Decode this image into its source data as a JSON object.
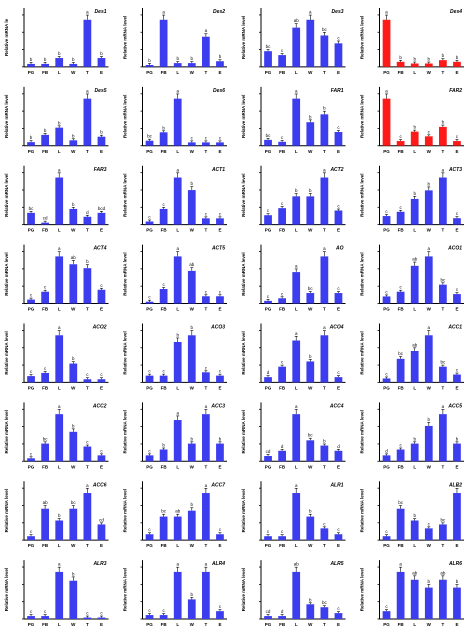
{
  "charts": [
    {
      "title": "Des1",
      "color": "#3d3df0",
      "ylabel": "Relative mRNA le",
      "values": [
        0.1,
        0.1,
        0.3,
        0.1,
        1.6,
        0.3
      ],
      "letters": [
        "b",
        "b",
        "b",
        "b",
        "a",
        "b"
      ]
    },
    {
      "title": "Des2",
      "color": "#3d3df0",
      "ylabel": "Relative mRNA level",
      "values": [
        0.05,
        1.25,
        0.1,
        0.1,
        0.8,
        0.15
      ],
      "letters": [
        "b",
        "a",
        "b",
        "b",
        "a",
        "b"
      ]
    },
    {
      "title": "Des3",
      "color": "#3d3df0",
      "ylabel": "Relative mRNA level",
      "values": [
        0.2,
        0.15,
        0.5,
        0.6,
        0.4,
        0.3
      ],
      "letters": [
        "bc",
        "c",
        "ab",
        "a",
        "bc",
        "c"
      ]
    },
    {
      "title": "Des4",
      "color": "#ff1a1a",
      "ylabel": "Relative mRNA level",
      "values": [
        1.4,
        0.15,
        0.1,
        0.1,
        0.2,
        0.15
      ],
      "letters": [
        "a",
        "b",
        "b",
        "b",
        "b",
        "b"
      ]
    },
    {
      "title": "Des5",
      "color": "#3d3df0",
      "ylabel": "Relative mRNA level",
      "values": [
        0.1,
        0.3,
        0.5,
        0.15,
        1.3,
        0.25
      ],
      "letters": [
        "b",
        "b",
        "b",
        "b",
        "a",
        "b"
      ]
    },
    {
      "title": "Des6",
      "color": "#3d3df0",
      "ylabel": "Relative mRNA level",
      "values": [
        0.15,
        0.4,
        1.4,
        0.1,
        0.1,
        0.1
      ],
      "letters": [
        "bc",
        "b",
        "a",
        "c",
        "c",
        "c"
      ]
    },
    {
      "title": "FAR1",
      "color": "#3d3df0",
      "ylabel": "Relative mRNA level",
      "values": [
        0.15,
        0.1,
        1.2,
        0.6,
        0.8,
        0.35
      ],
      "letters": [
        "bc",
        "c",
        "a",
        "b",
        "b",
        "c"
      ]
    },
    {
      "title": "FAR2",
      "color": "#ff1a1a",
      "ylabel": "Relative mRNA level",
      "values": [
        1.0,
        0.1,
        0.3,
        0.2,
        0.4,
        0.1
      ],
      "letters": [
        "a",
        "c",
        "b",
        "c",
        "b",
        "c"
      ]
    },
    {
      "title": "FAR3",
      "color": "#3d3df0",
      "ylabel": "Relative mRNA level",
      "values": [
        0.3,
        0.05,
        1.2,
        0.4,
        0.2,
        0.3
      ],
      "letters": [
        "bc",
        "cd",
        "a",
        "b",
        "d",
        "bcd"
      ]
    },
    {
      "title": "ACT1",
      "color": "#3d3df0",
      "ylabel": "Relative mRNA level",
      "values": [
        0.1,
        0.5,
        1.5,
        1.1,
        0.2,
        0.2
      ],
      "letters": [
        "c",
        "c",
        "a",
        "b",
        "c",
        "c"
      ]
    },
    {
      "title": "ACT2",
      "color": "#3d3df0",
      "ylabel": "Relative mRNA level",
      "values": [
        0.2,
        0.35,
        0.6,
        0.6,
        1.0,
        0.3
      ],
      "letters": [
        "c",
        "c",
        "b",
        "b",
        "a",
        "c"
      ]
    },
    {
      "title": "ACT3",
      "color": "#3d3df0",
      "ylabel": "Relative mRNA level",
      "values": [
        0.2,
        0.3,
        0.6,
        0.8,
        1.1,
        0.15
      ],
      "letters": [
        "c",
        "c",
        "b",
        "b",
        "a",
        "c"
      ]
    },
    {
      "title": "ACT4",
      "color": "#3d3df0",
      "ylabel": "Relative mRNA level",
      "values": [
        0.1,
        0.3,
        1.2,
        1.0,
        0.9,
        0.35
      ],
      "letters": [
        "c",
        "c",
        "a",
        "ab",
        "b",
        "c"
      ]
    },
    {
      "title": "ACT5",
      "color": "#3d3df0",
      "ylabel": "Relative mRNA level",
      "values": [
        0.05,
        0.4,
        1.3,
        0.9,
        0.2,
        0.2
      ],
      "letters": [
        "c",
        "c",
        "a",
        "ab",
        "c",
        "c"
      ]
    },
    {
      "title": "AO",
      "color": "#3d3df0",
      "ylabel": "Relative mRNA level",
      "values": [
        0.05,
        0.1,
        0.6,
        0.2,
        0.9,
        0.2
      ],
      "letters": [
        "c",
        "c",
        "a",
        "bc",
        "a",
        "c"
      ]
    },
    {
      "title": "ACO1",
      "color": "#3d3df0",
      "ylabel": "Relative mRNA level",
      "values": [
        0.15,
        0.25,
        0.8,
        1.0,
        0.4,
        0.2
      ],
      "letters": [
        "c",
        "c",
        "ab",
        "a",
        "bc",
        "c"
      ]
    },
    {
      "title": "ACO2",
      "color": "#3d3df0",
      "ylabel": "Relative mRNA level",
      "values": [
        0.2,
        0.3,
        1.5,
        0.6,
        0.1,
        0.1
      ],
      "letters": [
        "c",
        "c",
        "a",
        "b",
        "c",
        "c"
      ]
    },
    {
      "title": "ACO3",
      "color": "#3d3df0",
      "ylabel": "Relative mRNA level",
      "values": [
        0.1,
        0.1,
        0.6,
        0.7,
        0.15,
        0.1
      ],
      "letters": [
        "c",
        "c",
        "b",
        "b",
        "c",
        "c"
      ]
    },
    {
      "title": "ACO4",
      "color": "#3d3df0",
      "ylabel": "Relative mRNA level",
      "values": [
        0.1,
        0.3,
        0.8,
        0.4,
        0.9,
        0.1
      ],
      "letters": [
        "d",
        "c",
        "a",
        "b",
        "a",
        "c"
      ]
    },
    {
      "title": "ACC1",
      "color": "#3d3df0",
      "ylabel": "Relative mRNA level",
      "values": [
        0.1,
        0.6,
        0.8,
        1.2,
        0.4,
        0.2
      ],
      "letters": [
        "c",
        "bc",
        "ab",
        "a",
        "bc",
        "c"
      ]
    },
    {
      "title": "ACC2",
      "color": "#3d3df0",
      "ylabel": "Relative mRNA level",
      "values": [
        0.1,
        0.6,
        1.6,
        1.0,
        0.5,
        0.2
      ],
      "letters": [
        "c",
        "bc",
        "a",
        "b",
        "c",
        "c"
      ]
    },
    {
      "title": "ACC3",
      "color": "#3d3df0",
      "ylabel": "Relative mRNA level",
      "values": [
        0.1,
        0.2,
        0.7,
        0.3,
        0.8,
        0.3
      ],
      "letters": [
        "c",
        "b",
        "a",
        "b",
        "a",
        "b"
      ]
    },
    {
      "title": "ACC4",
      "color": "#3d3df0",
      "ylabel": "Relative mRNA level",
      "values": [
        0.1,
        0.2,
        0.9,
        0.4,
        0.3,
        0.2
      ],
      "letters": [
        "cd",
        "d",
        "a",
        "bc",
        "b",
        "d"
      ]
    },
    {
      "title": "ACC5",
      "color": "#3d3df0",
      "ylabel": "Relative mRNA level",
      "values": [
        0.1,
        0.2,
        0.3,
        0.6,
        0.8,
        0.3
      ],
      "letters": [
        "d",
        "c",
        "b",
        "b",
        "a",
        "b"
      ]
    },
    {
      "title": "ACC6",
      "color": "#3d3df0",
      "ylabel": "Relative mRNA level",
      "values": [
        0.1,
        0.8,
        0.5,
        0.8,
        1.2,
        0.4
      ],
      "letters": [
        "c",
        "ab",
        "b",
        "bc",
        "a",
        "cd"
      ]
    },
    {
      "title": "ACC7",
      "color": "#3d3df0",
      "ylabel": "Relative mRNA level",
      "values": [
        0.1,
        0.4,
        0.4,
        0.5,
        0.8,
        0.1
      ],
      "letters": [
        "c",
        "bc",
        "ab",
        "b",
        "a",
        "c"
      ]
    },
    {
      "title": "ALR1",
      "color": "#3d3df0",
      "ylabel": "Relative mRNA level",
      "values": [
        0.1,
        0.1,
        1.2,
        0.6,
        0.3,
        0.15
      ],
      "letters": [
        "c",
        "c",
        "a",
        "b",
        "c",
        "c"
      ]
    },
    {
      "title": "ALR2",
      "color": "#3d3df0",
      "ylabel": "Relative mRNA level",
      "values": [
        0.1,
        0.8,
        0.5,
        0.3,
        0.4,
        1.2
      ],
      "letters": [
        "c",
        "bc",
        "b",
        "c",
        "bc",
        "a"
      ]
    },
    {
      "title": "ALR3",
      "color": "#3d3df0",
      "ylabel": "Relative mRNA level",
      "values": [
        0.1,
        0.1,
        1.6,
        1.3,
        0.05,
        0.05
      ],
      "letters": [
        "c",
        "c",
        "a",
        "b",
        "c",
        "c"
      ]
    },
    {
      "title": "ALR4",
      "color": "#3d3df0",
      "ylabel": "Relative mRNA level",
      "values": [
        0.1,
        0.1,
        1.2,
        0.5,
        1.2,
        0.2
      ],
      "letters": [
        "c",
        "c",
        "a",
        "b",
        "a",
        "c"
      ]
    },
    {
      "title": "ALR5",
      "color": "#3d3df0",
      "ylabel": "Relative mRNA level",
      "values": [
        0.1,
        0.1,
        1.6,
        0.5,
        0.4,
        0.2
      ],
      "letters": [
        "cd",
        "d",
        "ab",
        "b",
        "bc",
        "c"
      ]
    },
    {
      "title": "ALR6",
      "color": "#3d3df0",
      "ylabel": "Relative mRNA level",
      "values": [
        0.2,
        1.2,
        1.0,
        0.8,
        1.0,
        0.8
      ],
      "letters": [
        "c",
        "a",
        "ab",
        "b",
        "ab",
        "b"
      ]
    }
  ],
  "categories": [
    "PG",
    "FB",
    "L",
    "W",
    "T",
    "E"
  ],
  "second_last_categories": [
    "PG",
    "FB",
    "L",
    "W",
    "T",
    "E"
  ],
  "last_row_categories": [
    "PG",
    "FB",
    "L",
    "W",
    "T",
    "E"
  ]
}
